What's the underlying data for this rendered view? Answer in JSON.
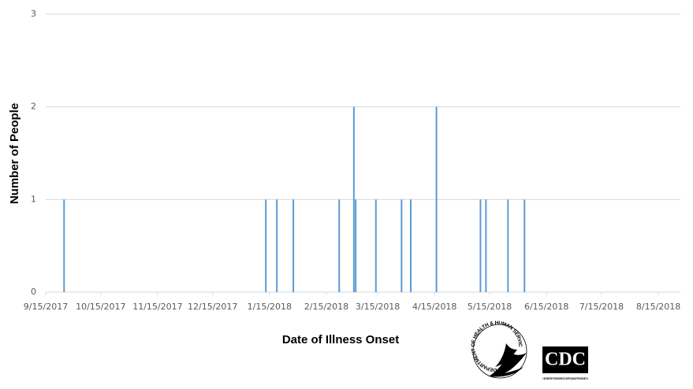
{
  "chart_data": {
    "type": "bar",
    "x_label": "Date of Illness Onset",
    "y_label": "Number of People",
    "x": [
      "2017-09-25",
      "2018-01-13",
      "2018-01-19",
      "2018-01-28",
      "2018-02-22",
      "2018-03-02",
      "2018-03-03",
      "2018-03-14",
      "2018-03-28",
      "2018-04-02",
      "2018-04-16",
      "2018-05-10",
      "2018-05-13",
      "2018-05-25",
      "2018-06-03"
    ],
    "values": [
      1,
      1,
      1,
      1,
      1,
      2,
      1,
      1,
      1,
      1,
      2,
      1,
      1,
      1,
      1
    ],
    "color": "#5b9bd5",
    "xlim": [
      "2017-09-15",
      "2018-08-27"
    ],
    "xticks": [
      {
        "value": "2017-09-15",
        "label": "9/15/2017"
      },
      {
        "value": "2017-10-15",
        "label": "10/15/2017"
      },
      {
        "value": "2017-11-15",
        "label": "11/15/2017"
      },
      {
        "value": "2017-12-15",
        "label": "12/15/2017"
      },
      {
        "value": "2018-01-15",
        "label": "1/15/2018"
      },
      {
        "value": "2018-02-15",
        "label": "2/15/2018"
      },
      {
        "value": "2018-03-15",
        "label": "3/15/2018"
      },
      {
        "value": "2018-04-15",
        "label": "4/15/2018"
      },
      {
        "value": "2018-05-15",
        "label": "5/15/2018"
      },
      {
        "value": "2018-06-15",
        "label": "6/15/2018"
      },
      {
        "value": "2018-07-15",
        "label": "7/15/2018"
      },
      {
        "value": "2018-08-15",
        "label": "8/15/2018"
      }
    ],
    "ylim": [
      0,
      3
    ],
    "yticks": [
      0,
      1,
      2,
      3
    ],
    "grid": true
  },
  "logos": {
    "hhs": "DEPARTMENT OF HEALTH & HUMAN SERVICES USA",
    "cdc": "CDC",
    "cdc_sub": "CENTERS FOR DISEASE CONTROL AND PREVENTION"
  }
}
